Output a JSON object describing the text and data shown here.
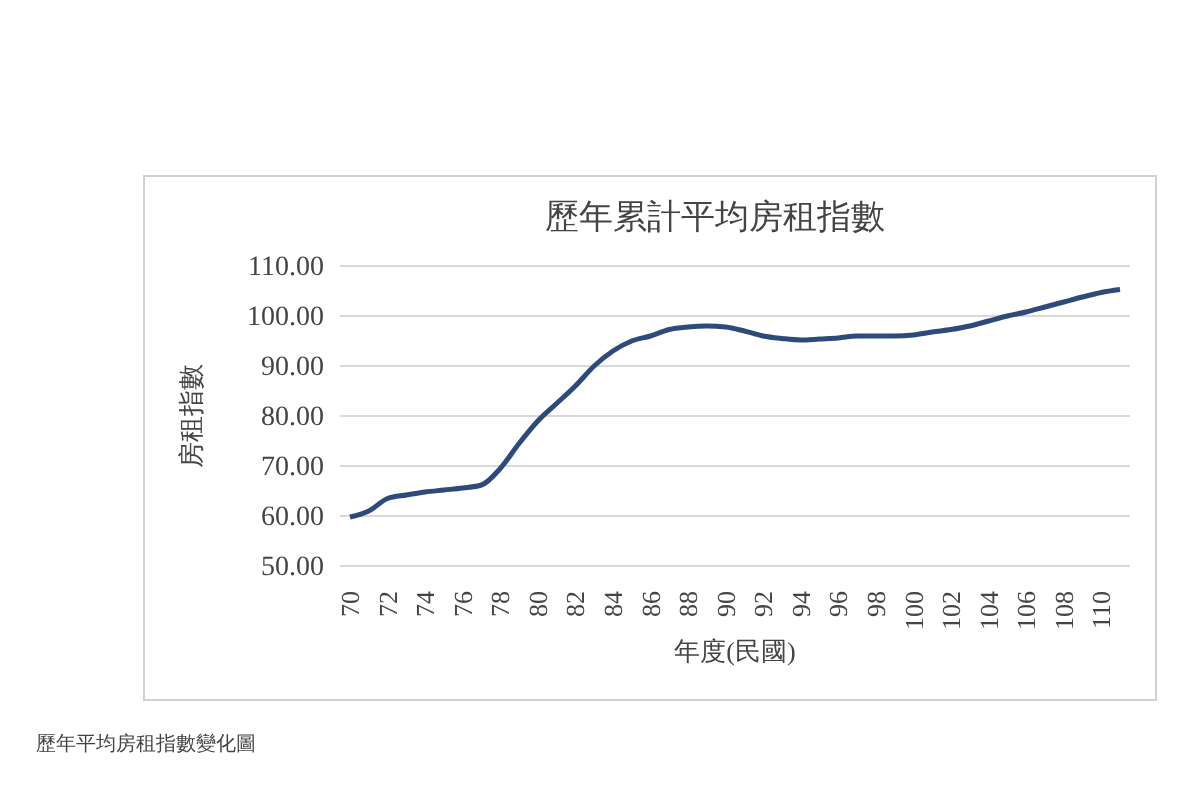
{
  "chart_data": {
    "type": "line",
    "title": "歷年累計平均房租指數",
    "xlabel": "年度(民國)",
    "ylabel": "房租指數",
    "categories": [
      "70",
      null,
      "72",
      null,
      "74",
      null,
      "76",
      null,
      "78",
      null,
      "80",
      null,
      "82",
      null,
      "84",
      null,
      "86",
      null,
      "88",
      null,
      "90",
      null,
      "92",
      null,
      "94",
      null,
      "96",
      null,
      "98",
      null,
      "100",
      null,
      "102",
      null,
      "104",
      null,
      "106",
      null,
      "108",
      null,
      "110",
      null
    ],
    "series": [
      {
        "color": "#2e4a7a",
        "values": [
          59.8,
          61,
          63.5,
          64.2,
          64.8,
          65.2,
          65.6,
          66.2,
          69.5,
          74.5,
          79,
          82.5,
          86,
          90,
          93,
          95,
          96,
          97.3,
          97.8,
          98,
          97.8,
          97,
          96,
          95.5,
          95.2,
          95.4,
          95.6,
          96,
          96,
          96,
          96.2,
          96.8,
          97.3,
          98,
          99,
          100,
          100.8,
          101.8,
          102.8,
          103.8,
          104.7,
          105.3
        ]
      }
    ],
    "ylim": [
      50,
      110
    ],
    "yticks": [
      {
        "value": 50,
        "label": "50.00"
      },
      {
        "value": 60,
        "label": "60.00"
      },
      {
        "value": 70,
        "label": "70.00"
      },
      {
        "value": 80,
        "label": "80.00"
      },
      {
        "value": 90,
        "label": "90.00"
      },
      {
        "value": 100,
        "label": "100.00"
      },
      {
        "value": 110,
        "label": "110.00"
      }
    ],
    "grid": "y",
    "marker": "none",
    "line_style": "solid",
    "annotations": [
      "歷年平均房租指數變化圖"
    ]
  }
}
